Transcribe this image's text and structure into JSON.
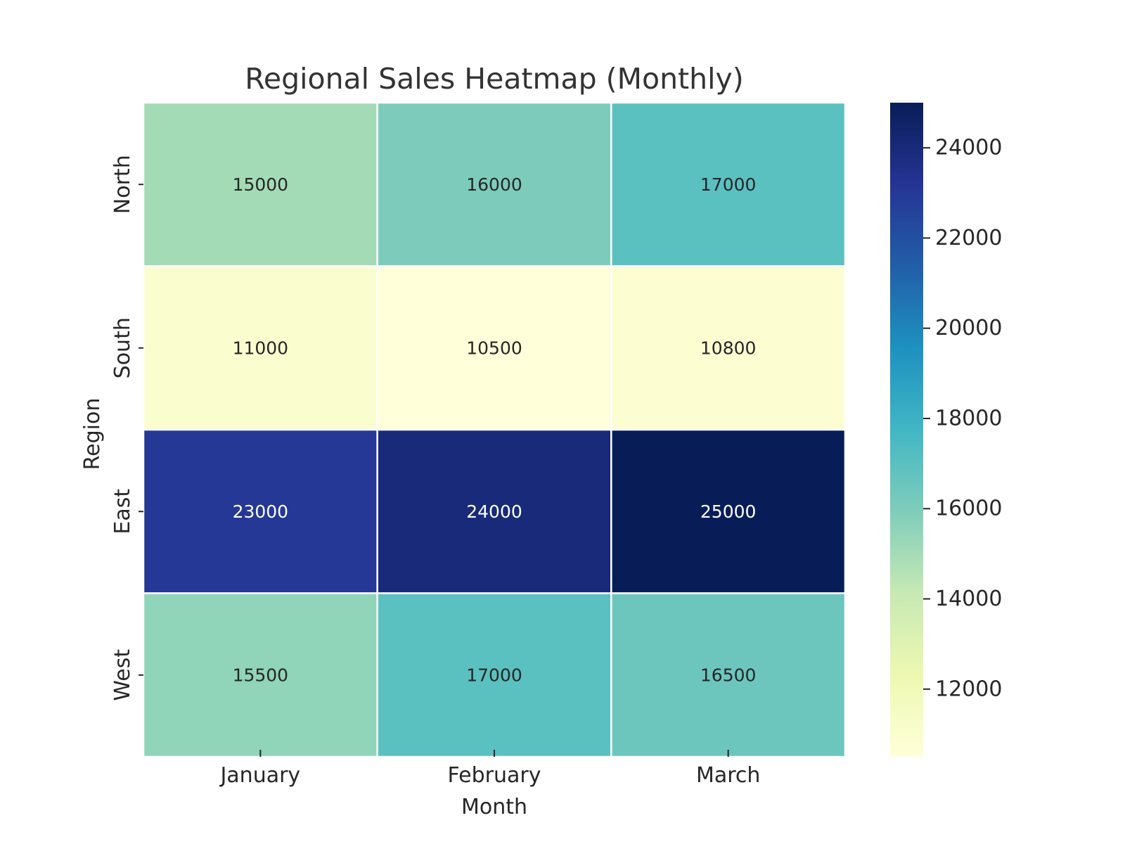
{
  "chart_data": {
    "type": "heatmap",
    "title": "Regional Sales Heatmap (Monthly)",
    "xlabel": "Month",
    "ylabel": "Region",
    "x_categories": [
      "January",
      "February",
      "March"
    ],
    "y_categories": [
      "North",
      "South",
      "East",
      "West"
    ],
    "values": [
      [
        15000,
        16000,
        17000
      ],
      [
        11000,
        10500,
        10800
      ],
      [
        23000,
        24000,
        25000
      ],
      [
        15500,
        17000,
        16500
      ]
    ],
    "annotations": true,
    "colormap": "YlGnBu",
    "colorbar": {
      "range": [
        10500,
        25000
      ],
      "ticks": [
        12000,
        14000,
        16000,
        18000,
        20000,
        22000,
        24000
      ]
    },
    "colors": {
      "cell_border": "#ffffff",
      "text_dark": "#262626",
      "text_light": "#ffffff"
    }
  }
}
